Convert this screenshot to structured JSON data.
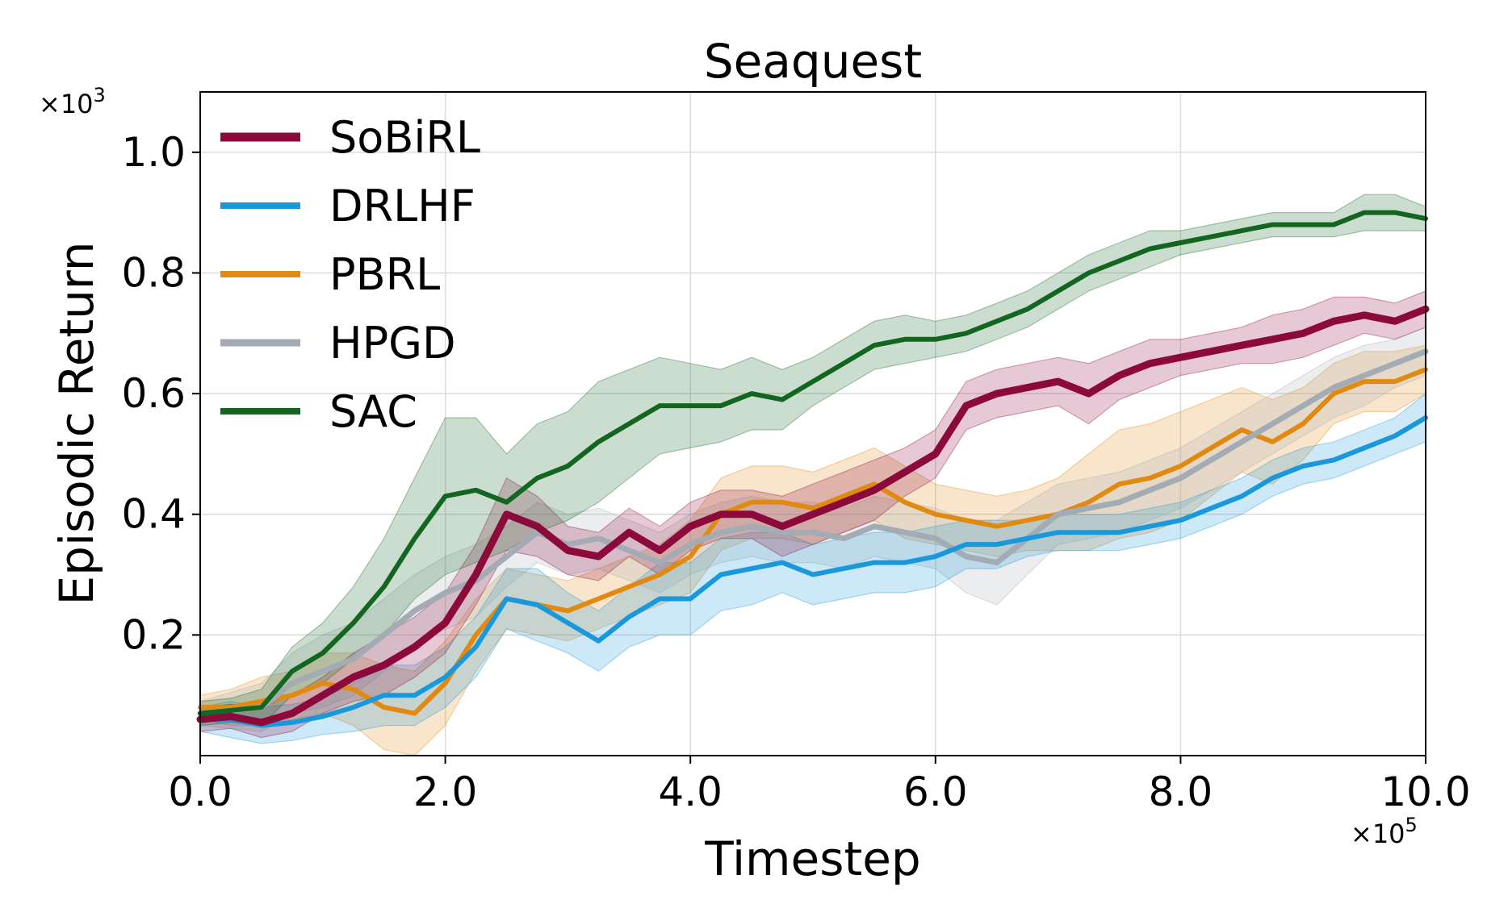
{
  "chart_data": {
    "type": "line",
    "title": "Seaquest",
    "xlabel": "Timestep",
    "ylabel": "Episodic Return",
    "x_multiplier_label": "×10",
    "x_multiplier_exp": "5",
    "y_multiplier_label": "×10",
    "y_multiplier_exp": "3",
    "xlim": [
      0,
      10
    ],
    "ylim": [
      0,
      1.1
    ],
    "x_ticks": [
      0,
      2,
      4,
      6,
      8,
      10
    ],
    "x_tick_labels": [
      "0.0",
      "2.0",
      "4.0",
      "6.0",
      "8.0",
      "10.0"
    ],
    "y_ticks": [
      0.2,
      0.4,
      0.6,
      0.8,
      1.0
    ],
    "y_tick_labels": [
      "0.2",
      "0.4",
      "0.6",
      "0.8",
      "1.0"
    ],
    "grid": true,
    "legend_position": "top-left",
    "x": [
      0,
      0.25,
      0.5,
      0.75,
      1,
      1.25,
      1.5,
      1.75,
      2,
      2.25,
      2.5,
      2.75,
      3,
      3.25,
      3.5,
      3.75,
      4,
      4.25,
      4.5,
      4.75,
      5,
      5.25,
      5.5,
      5.75,
      6,
      6.25,
      6.5,
      6.75,
      7,
      7.25,
      7.5,
      7.75,
      8,
      8.25,
      8.5,
      8.75,
      9,
      9.25,
      9.5,
      9.75,
      10
    ],
    "series": [
      {
        "name": "SoBiRL",
        "color": "#8b0a3b",
        "line_width": 9,
        "values": [
          0.06,
          0.065,
          0.055,
          0.07,
          0.1,
          0.13,
          0.15,
          0.18,
          0.22,
          0.3,
          0.4,
          0.38,
          0.34,
          0.33,
          0.37,
          0.34,
          0.38,
          0.4,
          0.4,
          0.38,
          0.4,
          0.42,
          0.44,
          0.47,
          0.5,
          0.58,
          0.6,
          0.61,
          0.62,
          0.6,
          0.63,
          0.65,
          0.66,
          0.67,
          0.68,
          0.69,
          0.7,
          0.72,
          0.73,
          0.72,
          0.74
        ],
        "band": [
          0.02,
          0.02,
          0.025,
          0.03,
          0.03,
          0.04,
          0.05,
          0.05,
          0.05,
          0.05,
          0.06,
          0.05,
          0.04,
          0.04,
          0.04,
          0.04,
          0.04,
          0.04,
          0.04,
          0.05,
          0.05,
          0.05,
          0.05,
          0.04,
          0.04,
          0.04,
          0.04,
          0.04,
          0.04,
          0.05,
          0.04,
          0.04,
          0.03,
          0.03,
          0.03,
          0.04,
          0.04,
          0.04,
          0.03,
          0.03,
          0.03
        ]
      },
      {
        "name": "DRLHF",
        "color": "#1a98dc",
        "line_width": 6,
        "values": [
          0.06,
          0.06,
          0.05,
          0.055,
          0.065,
          0.08,
          0.1,
          0.1,
          0.13,
          0.18,
          0.26,
          0.25,
          0.22,
          0.19,
          0.23,
          0.26,
          0.26,
          0.3,
          0.31,
          0.32,
          0.3,
          0.31,
          0.32,
          0.32,
          0.33,
          0.35,
          0.35,
          0.36,
          0.37,
          0.37,
          0.37,
          0.38,
          0.39,
          0.41,
          0.43,
          0.46,
          0.48,
          0.49,
          0.51,
          0.53,
          0.56
        ],
        "band": [
          0.02,
          0.03,
          0.03,
          0.03,
          0.03,
          0.04,
          0.05,
          0.05,
          0.05,
          0.05,
          0.05,
          0.06,
          0.05,
          0.05,
          0.05,
          0.06,
          0.06,
          0.06,
          0.06,
          0.05,
          0.05,
          0.05,
          0.05,
          0.05,
          0.05,
          0.04,
          0.04,
          0.03,
          0.03,
          0.03,
          0.03,
          0.03,
          0.03,
          0.03,
          0.03,
          0.03,
          0.03,
          0.03,
          0.03,
          0.03,
          0.04
        ]
      },
      {
        "name": "PBRL",
        "color": "#e08a12",
        "line_width": 6,
        "values": [
          0.08,
          0.08,
          0.09,
          0.1,
          0.12,
          0.11,
          0.08,
          0.07,
          0.12,
          0.2,
          0.26,
          0.25,
          0.24,
          0.26,
          0.28,
          0.3,
          0.33,
          0.4,
          0.42,
          0.42,
          0.41,
          0.43,
          0.45,
          0.42,
          0.4,
          0.39,
          0.38,
          0.39,
          0.4,
          0.42,
          0.45,
          0.46,
          0.48,
          0.51,
          0.54,
          0.52,
          0.55,
          0.6,
          0.62,
          0.62,
          0.64
        ],
        "band": [
          0.02,
          0.03,
          0.04,
          0.04,
          0.05,
          0.06,
          0.07,
          0.07,
          0.07,
          0.06,
          0.05,
          0.05,
          0.05,
          0.05,
          0.05,
          0.05,
          0.06,
          0.06,
          0.06,
          0.06,
          0.06,
          0.06,
          0.06,
          0.06,
          0.05,
          0.05,
          0.05,
          0.05,
          0.06,
          0.08,
          0.09,
          0.09,
          0.09,
          0.08,
          0.07,
          0.07,
          0.06,
          0.05,
          0.05,
          0.05,
          0.04
        ]
      },
      {
        "name": "HPGD",
        "color": "#a3abb4",
        "line_width": 7,
        "values": [
          0.07,
          0.075,
          0.08,
          0.12,
          0.14,
          0.16,
          0.2,
          0.24,
          0.27,
          0.29,
          0.33,
          0.37,
          0.35,
          0.36,
          0.34,
          0.32,
          0.35,
          0.37,
          0.38,
          0.37,
          0.37,
          0.36,
          0.38,
          0.37,
          0.36,
          0.33,
          0.32,
          0.36,
          0.4,
          0.41,
          0.42,
          0.44,
          0.46,
          0.49,
          0.52,
          0.55,
          0.58,
          0.61,
          0.63,
          0.65,
          0.67
        ],
        "band": [
          0.02,
          0.03,
          0.04,
          0.05,
          0.06,
          0.06,
          0.06,
          0.06,
          0.06,
          0.06,
          0.05,
          0.05,
          0.05,
          0.05,
          0.05,
          0.05,
          0.05,
          0.05,
          0.05,
          0.05,
          0.05,
          0.05,
          0.05,
          0.05,
          0.05,
          0.06,
          0.07,
          0.06,
          0.05,
          0.05,
          0.05,
          0.05,
          0.05,
          0.05,
          0.05,
          0.05,
          0.05,
          0.05,
          0.05,
          0.04,
          0.04
        ]
      },
      {
        "name": "SAC",
        "color": "#12661f",
        "line_width": 6,
        "values": [
          0.07,
          0.075,
          0.08,
          0.14,
          0.17,
          0.22,
          0.28,
          0.36,
          0.43,
          0.44,
          0.42,
          0.46,
          0.48,
          0.52,
          0.55,
          0.58,
          0.58,
          0.58,
          0.6,
          0.59,
          0.62,
          0.65,
          0.68,
          0.69,
          0.69,
          0.7,
          0.72,
          0.74,
          0.77,
          0.8,
          0.82,
          0.84,
          0.85,
          0.86,
          0.87,
          0.88,
          0.88,
          0.88,
          0.9,
          0.9,
          0.89
        ],
        "band": [
          0.02,
          0.02,
          0.03,
          0.04,
          0.05,
          0.06,
          0.08,
          0.1,
          0.13,
          0.12,
          0.08,
          0.09,
          0.09,
          0.1,
          0.09,
          0.08,
          0.07,
          0.06,
          0.06,
          0.05,
          0.04,
          0.04,
          0.04,
          0.04,
          0.03,
          0.03,
          0.03,
          0.03,
          0.03,
          0.03,
          0.03,
          0.03,
          0.02,
          0.02,
          0.02,
          0.02,
          0.02,
          0.02,
          0.03,
          0.03,
          0.02
        ]
      }
    ]
  }
}
